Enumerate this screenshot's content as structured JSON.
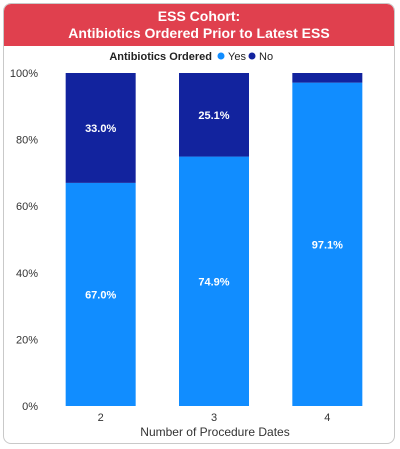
{
  "header": {
    "title_line1": "ESS Cohort:",
    "title_line2": "Antibiotics Ordered Prior to Latest ESS"
  },
  "legend": {
    "title": "Antibiotics Ordered",
    "items": [
      {
        "label": "Yes",
        "color": "#118dff"
      },
      {
        "label": "No",
        "color": "#12239e"
      }
    ]
  },
  "chart_data": {
    "type": "bar",
    "stacked": "100%",
    "categories": [
      "2",
      "3",
      "4"
    ],
    "series": [
      {
        "name": "Yes",
        "color": "#118dff",
        "values": [
          67.0,
          74.9,
          97.1
        ],
        "labels": [
          "67.0%",
          "74.9%",
          "97.1%"
        ]
      },
      {
        "name": "No",
        "color": "#12239e",
        "values": [
          33.0,
          25.1,
          2.9
        ],
        "labels": [
          "33.0%",
          "25.1%",
          ""
        ]
      }
    ],
    "xlabel": "Number of Procedure Dates",
    "ylabel": "",
    "ylim": [
      0,
      100
    ],
    "yticks": [
      "0%",
      "20%",
      "40%",
      "60%",
      "80%",
      "100%"
    ],
    "grid": false,
    "legend_position": "top"
  }
}
